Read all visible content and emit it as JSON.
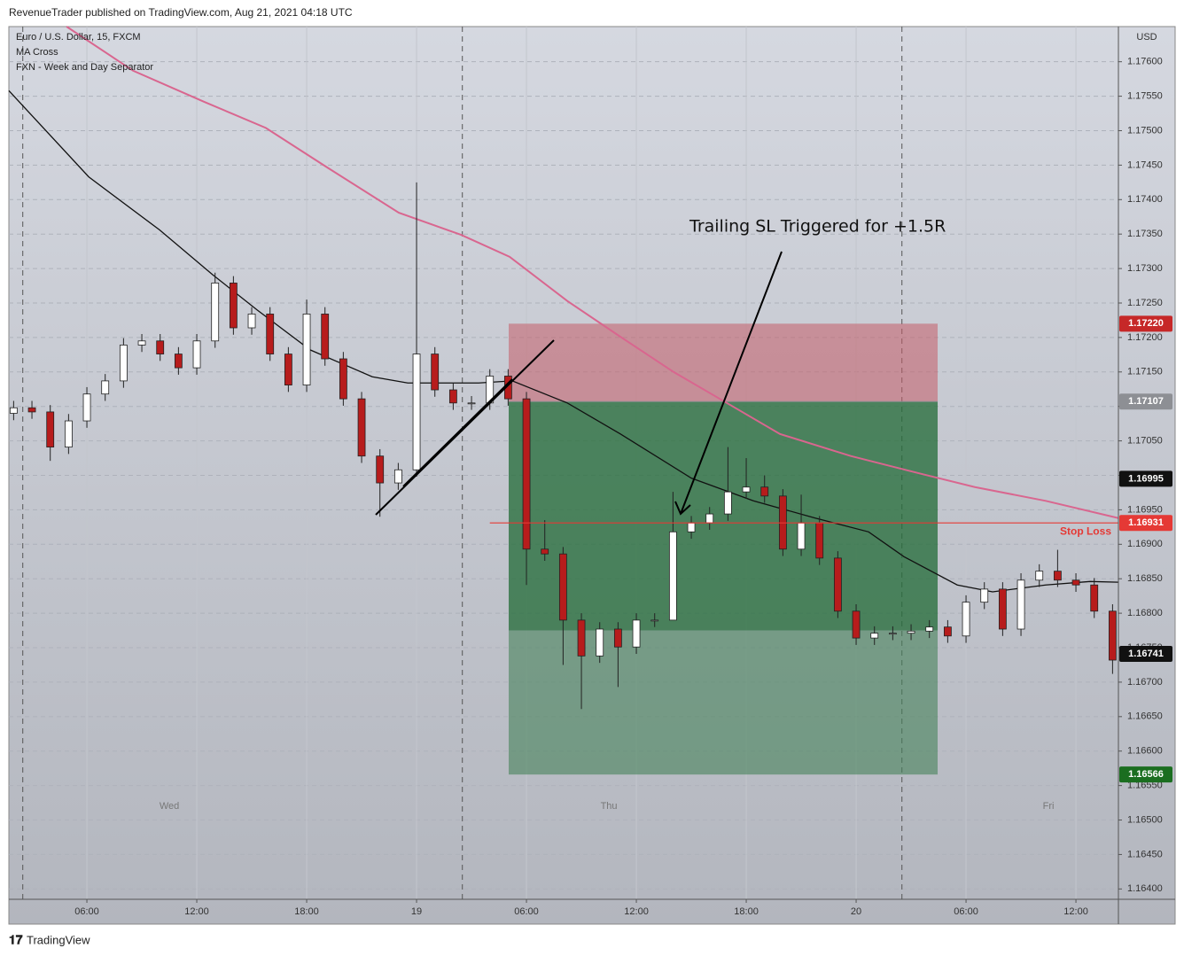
{
  "header": {
    "published": "RevenueTrader published on TradingView.com, Aug 21, 2021 04:18 UTC"
  },
  "legend": [
    "Euro / U.S. Dollar, 15, FXCM",
    "MA Cross",
    "FXN - Week and Day Separator"
  ],
  "footer": {
    "brand": "TradingView"
  },
  "chart_data": {
    "type": "candlestick",
    "currency": "USD",
    "annotation": "Trailing SL Triggered for +1.5R",
    "xlim": [
      1.74,
      62.32
    ],
    "ylim": [
      1.16385,
      1.17651
    ],
    "xticks": [
      {
        "value": 6,
        "label": "06:00"
      },
      {
        "value": 12,
        "label": "12:00"
      },
      {
        "value": 18,
        "label": "18:00"
      },
      {
        "value": 24,
        "label": "19"
      },
      {
        "value": 30,
        "label": "06:00"
      },
      {
        "value": 36,
        "label": "12:00"
      },
      {
        "value": 42,
        "label": "18:00"
      },
      {
        "value": 48,
        "label": "20"
      },
      {
        "value": 54,
        "label": "06:00"
      },
      {
        "value": 60,
        "label": "12:00"
      }
    ],
    "yticks": [
      {
        "value": 1.164,
        "label": "1.16400"
      },
      {
        "value": 1.1645,
        "label": "1.16450"
      },
      {
        "value": 1.165,
        "label": "1.16500"
      },
      {
        "value": 1.1655,
        "label": "1.16550"
      },
      {
        "value": 1.166,
        "label": "1.16600"
      },
      {
        "value": 1.1665,
        "label": "1.16650"
      },
      {
        "value": 1.167,
        "label": "1.16700"
      },
      {
        "value": 1.1675,
        "label": "1.16750"
      },
      {
        "value": 1.168,
        "label": "1.16800"
      },
      {
        "value": 1.1685,
        "label": "1.16850"
      },
      {
        "value": 1.169,
        "label": "1.16900"
      },
      {
        "value": 1.1695,
        "label": "1.16950"
      },
      {
        "value": 1.17,
        "label": "1.17000"
      },
      {
        "value": 1.1705,
        "label": "1.17050"
      },
      {
        "value": 1.171,
        "label": "1.17100"
      },
      {
        "value": 1.1715,
        "label": "1.17150"
      },
      {
        "value": 1.172,
        "label": "1.17200"
      },
      {
        "value": 1.1725,
        "label": "1.17250"
      },
      {
        "value": 1.173,
        "label": "1.17300"
      },
      {
        "value": 1.1735,
        "label": "1.17350"
      },
      {
        "value": 1.174,
        "label": "1.17400"
      },
      {
        "value": 1.1745,
        "label": "1.17450"
      },
      {
        "value": 1.175,
        "label": "1.17500"
      },
      {
        "value": 1.1755,
        "label": "1.17550"
      },
      {
        "value": 1.176,
        "label": "1.17600"
      }
    ],
    "grid": true,
    "separators": [
      2.5,
      26.5,
      50.5
    ],
    "day_labels": [
      {
        "value": 10.5,
        "label": "Wed"
      },
      {
        "value": 34.5,
        "label": "Thu"
      },
      {
        "value": 58.5,
        "label": "Fri"
      }
    ],
    "candles": {
      "up_color": "#ffffff",
      "down_color": "#b71c1c",
      "x": [
        2,
        3,
        4,
        5,
        6,
        7,
        8,
        9,
        10,
        11,
        12,
        13,
        14,
        15,
        16,
        17,
        18,
        19,
        20,
        21,
        22,
        23,
        24,
        25,
        26,
        27,
        28,
        29,
        30,
        31,
        32,
        33,
        34,
        35,
        36,
        37,
        38,
        39,
        40,
        41,
        42,
        43,
        44,
        45,
        46,
        47,
        48,
        49,
        50,
        51,
        52,
        53,
        54,
        55,
        56,
        57,
        58,
        59,
        60,
        61,
        62
      ],
      "open": [
        1.1709,
        1.17098,
        1.17092,
        1.17041,
        1.17079,
        1.17118,
        1.17137,
        1.17189,
        1.17195,
        1.17176,
        1.17156,
        1.17195,
        1.17279,
        1.17214,
        1.17234,
        1.17176,
        1.17131,
        1.17234,
        1.17169,
        1.17111,
        1.17028,
        1.16989,
        1.17008,
        1.17176,
        1.17124,
        1.17105,
        1.17105,
        1.17144,
        1.17111,
        1.16893,
        1.16886,
        1.1679,
        1.16738,
        1.16777,
        1.16751,
        1.1679,
        1.1679,
        1.16918,
        1.16931,
        1.16944,
        1.16976,
        1.16983,
        1.1697,
        1.16893,
        1.16931,
        1.1688,
        1.16803,
        1.16764,
        1.16771,
        1.16771,
        1.16774,
        1.1678,
        1.16767,
        1.16816,
        1.16835,
        1.16777,
        1.16848,
        1.16861,
        1.16848,
        1.16841,
        1.16803
      ],
      "high": [
        1.17108,
        1.17108,
        1.17102,
        1.17089,
        1.17128,
        1.17147,
        1.17199,
        1.17205,
        1.17205,
        1.17186,
        1.17205,
        1.17294,
        1.17289,
        1.17244,
        1.17244,
        1.17186,
        1.17255,
        1.17244,
        1.17179,
        1.17121,
        1.17038,
        1.17018,
        1.17425,
        1.17186,
        1.17134,
        1.17115,
        1.17154,
        1.17154,
        1.17121,
        1.16935,
        1.16896,
        1.168,
        1.16787,
        1.16787,
        1.168,
        1.168,
        1.16976,
        1.16941,
        1.16954,
        1.17041,
        1.17025,
        1.17,
        1.1698,
        1.16972,
        1.16941,
        1.1689,
        1.16813,
        1.16781,
        1.16781,
        1.16784,
        1.1679,
        1.1679,
        1.16826,
        1.16845,
        1.16845,
        1.16858,
        1.16871,
        1.16892,
        1.16858,
        1.16851,
        1.16813
      ],
      "low": [
        1.1708,
        1.17082,
        1.17021,
        1.17031,
        1.17069,
        1.17108,
        1.17127,
        1.17179,
        1.17166,
        1.17146,
        1.17146,
        1.17185,
        1.17204,
        1.17204,
        1.17166,
        1.17121,
        1.17121,
        1.17159,
        1.17101,
        1.17018,
        1.1694,
        1.16979,
        1.16998,
        1.17114,
        1.17095,
        1.17095,
        1.17095,
        1.17101,
        1.16841,
        1.16876,
        1.16725,
        1.16661,
        1.16728,
        1.16693,
        1.16741,
        1.1678,
        1.16803,
        1.16908,
        1.16921,
        1.16934,
        1.16966,
        1.1696,
        1.16883,
        1.16883,
        1.1687,
        1.16793,
        1.16754,
        1.16754,
        1.16761,
        1.16761,
        1.16764,
        1.16757,
        1.16757,
        1.16806,
        1.16767,
        1.16767,
        1.16838,
        1.16838,
        1.16831,
        1.16793,
        1.16712
      ],
      "close": [
        1.17098,
        1.17092,
        1.17041,
        1.17079,
        1.17118,
        1.17137,
        1.17189,
        1.17195,
        1.17176,
        1.17156,
        1.17195,
        1.17279,
        1.17214,
        1.17234,
        1.17176,
        1.17131,
        1.17234,
        1.17169,
        1.17111,
        1.17028,
        1.16989,
        1.17008,
        1.17176,
        1.17124,
        1.17105,
        1.17105,
        1.17144,
        1.17111,
        1.16893,
        1.16886,
        1.1679,
        1.16738,
        1.16777,
        1.16751,
        1.1679,
        1.1679,
        1.16918,
        1.16931,
        1.16944,
        1.16976,
        1.16983,
        1.1697,
        1.16893,
        1.16931,
        1.1688,
        1.16803,
        1.16764,
        1.16771,
        1.16771,
        1.16774,
        1.1678,
        1.16767,
        1.16816,
        1.16835,
        1.16777,
        1.16848,
        1.16861,
        1.16848,
        1.16841,
        1.16803,
        1.16732
      ]
    },
    "series": [
      {
        "color": "#111111",
        "x": [
          1.74,
          6.1,
          9.97,
          12.87,
          15.29,
          18.19,
          21.58,
          23.52,
          27.39,
          29.23,
          32.23,
          35.13,
          39.0,
          42.39,
          45.77,
          48.68,
          50.61,
          53.52,
          55.45,
          58.35,
          60.77,
          62.32
        ],
        "values": [
          1.17558,
          1.17433,
          1.17356,
          1.17291,
          1.1724,
          1.17182,
          1.17143,
          1.17134,
          1.17134,
          1.17137,
          1.17105,
          1.1706,
          1.16996,
          1.16963,
          1.16938,
          1.16918,
          1.16882,
          1.16841,
          1.16831,
          1.16841,
          1.16846,
          1.16845
        ]
      },
      {
        "color": "#d9668f",
        "x": [
          4.89,
          8.52,
          12.39,
          15.77,
          19.16,
          23.03,
          26.42,
          29.08,
          32.23,
          35.13,
          38.03,
          40.94,
          43.84,
          47.71,
          51.58,
          54.48,
          58.35,
          62.32
        ],
        "values": [
          1.17651,
          1.17587,
          1.17542,
          1.17504,
          1.17446,
          1.17381,
          1.17349,
          1.17317,
          1.17253,
          1.17201,
          1.1715,
          1.17105,
          1.1706,
          1.17028,
          1.17002,
          1.16983,
          1.16963,
          1.16938
        ]
      }
    ],
    "position": {
      "x_start": 29.03,
      "x_end": 52.45,
      "stop": 1.1722,
      "entry": 1.17107,
      "filled_to": 1.16775,
      "target": 1.16566
    },
    "stop_loss": {
      "value": 1.16931,
      "label": "Stop Loss",
      "color": "#e53935",
      "x_start": 28.0
    },
    "price_markers": [
      {
        "value": 1.1722,
        "label": "1.17220",
        "color": "#c62828"
      },
      {
        "value": 1.17107,
        "label": "1.17107",
        "color": "#8d8f94"
      },
      {
        "value": 1.16995,
        "label": "1.16995",
        "color": "#111111"
      },
      {
        "value": 1.16931,
        "label": "1.16931",
        "color": "#e53935"
      },
      {
        "value": 1.16741,
        "label": "1.16741",
        "color": "#111111"
      },
      {
        "value": 1.16566,
        "label": "1.16566",
        "color": "#1b6e20"
      }
    ]
  }
}
